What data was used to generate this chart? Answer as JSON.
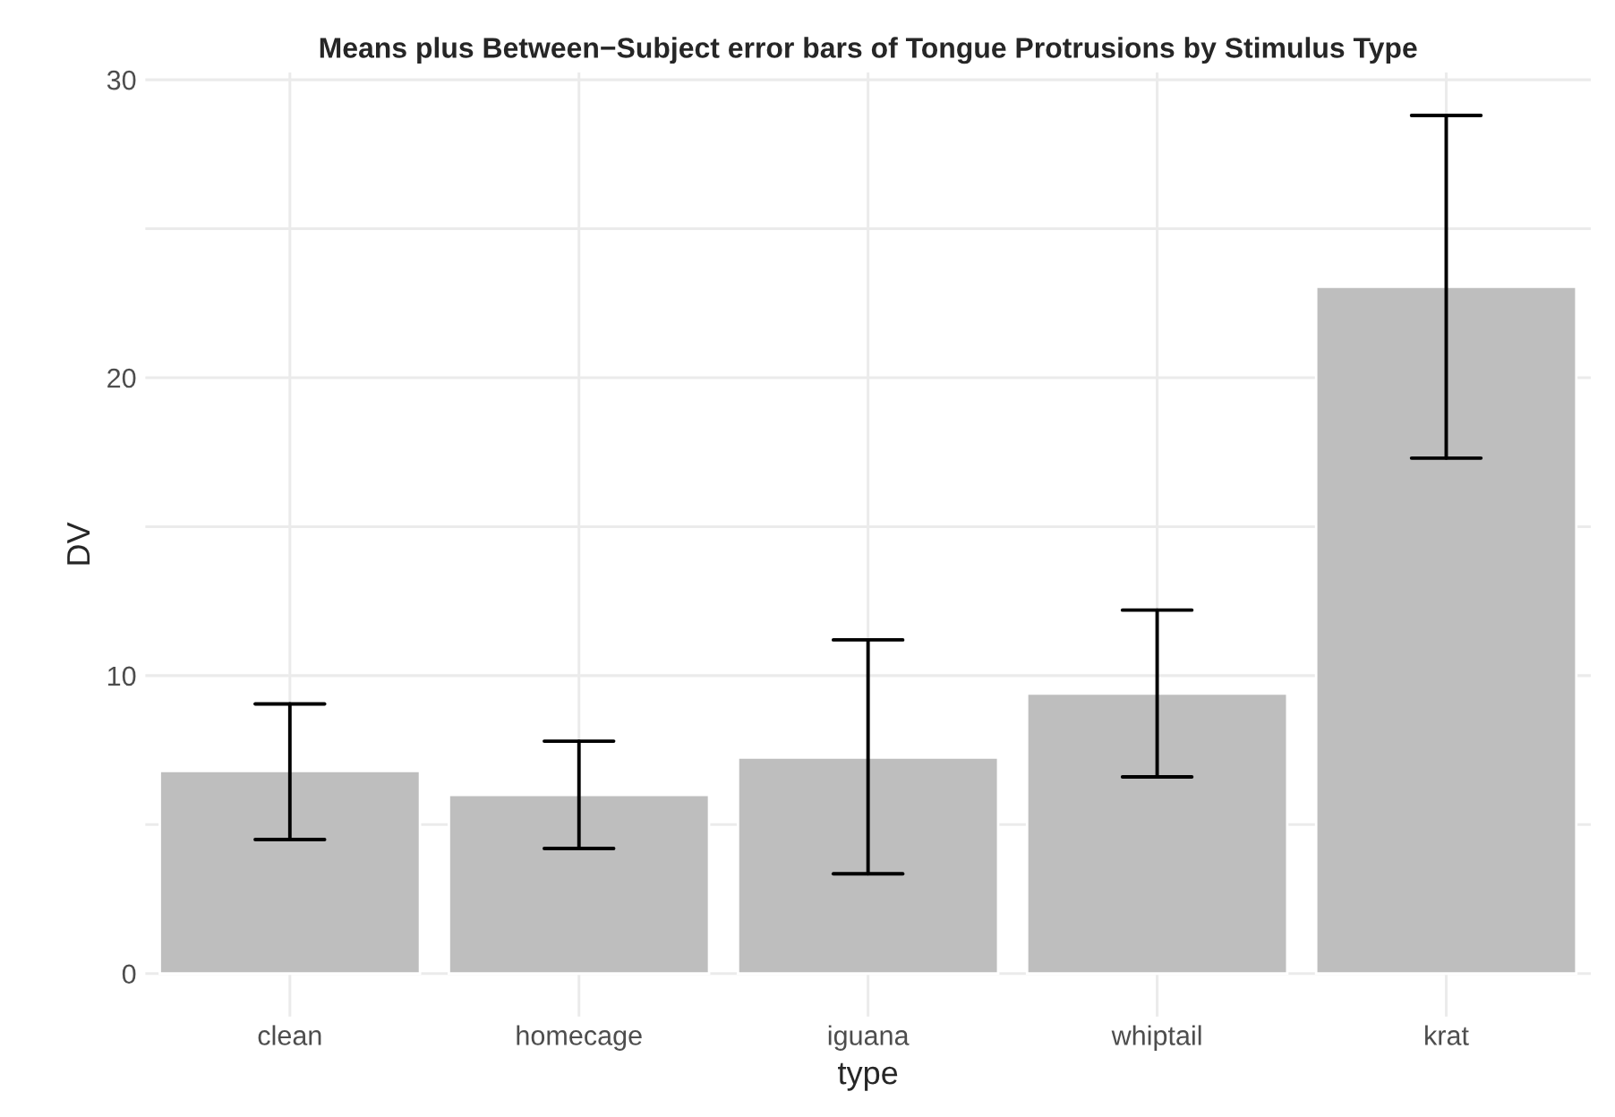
{
  "chart_data": {
    "type": "bar",
    "title": "Means plus Between−Subject error bars of Tongue Protrusions by Stimulus Type",
    "xlabel": "type",
    "ylabel": "DV",
    "categories": [
      "clean",
      "homecage",
      "iguana",
      "whiptail",
      "krat"
    ],
    "values": [
      6.8,
      6.0,
      7.25,
      9.4,
      23.05
    ],
    "errors": [
      [
        4.5,
        9.05
      ],
      [
        4.2,
        7.8
      ],
      [
        3.35,
        11.2
      ],
      [
        6.6,
        12.2
      ],
      [
        17.3,
        28.8
      ]
    ],
    "color": "#bebebe",
    "ylim": [
      -1.44,
      30.24
    ],
    "yticks": [
      0,
      {
        "value": 5,
        "label": null
      },
      10,
      {
        "value": 15,
        "label": null
      },
      20,
      {
        "value": 25,
        "label": null
      },
      30
    ],
    "grid": true
  }
}
